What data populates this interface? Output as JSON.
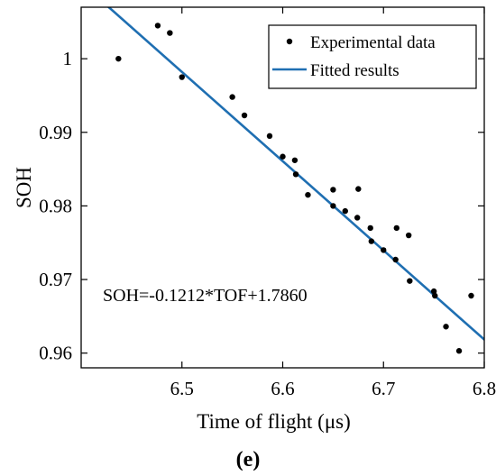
{
  "chart_data": {
    "type": "scatter",
    "xlabel": "Time of flight (μs)",
    "ylabel": "SOH",
    "xlim": [
      6.4,
      6.8
    ],
    "ylim": [
      0.958,
      1.007
    ],
    "xticks": [
      "6.5",
      "6.6",
      "6.7",
      "6.8"
    ],
    "yticks": [
      "0.96",
      "0.97",
      "0.98",
      "0.99",
      "1"
    ],
    "legend_position": "top-right",
    "grid": false,
    "series": [
      {
        "name": "Experimental data",
        "kind": "markers",
        "color": "#000000",
        "points": [
          [
            6.437,
            1.0
          ],
          [
            6.476,
            1.0045
          ],
          [
            6.488,
            1.0035
          ],
          [
            6.5,
            0.9975
          ],
          [
            6.55,
            0.9948
          ],
          [
            6.562,
            0.9923
          ],
          [
            6.587,
            0.9895
          ],
          [
            6.6,
            0.9867
          ],
          [
            6.612,
            0.9862
          ],
          [
            6.613,
            0.9843
          ],
          [
            6.625,
            0.9815
          ],
          [
            6.65,
            0.9822
          ],
          [
            6.65,
            0.98
          ],
          [
            6.662,
            0.9793
          ],
          [
            6.674,
            0.9784
          ],
          [
            6.675,
            0.9823
          ],
          [
            6.687,
            0.977
          ],
          [
            6.688,
            0.9752
          ],
          [
            6.7,
            0.974
          ],
          [
            6.712,
            0.9727
          ],
          [
            6.713,
            0.977
          ],
          [
            6.725,
            0.976
          ],
          [
            6.726,
            0.9698
          ],
          [
            6.75,
            0.9684
          ],
          [
            6.751,
            0.9678
          ],
          [
            6.762,
            0.9636
          ],
          [
            6.775,
            0.9603
          ],
          [
            6.787,
            0.9678
          ]
        ]
      },
      {
        "name": "Fitted results",
        "kind": "line",
        "color": "#1f6fb2",
        "slope": -0.1212,
        "intercept": 1.786
      }
    ],
    "annotation": "SOH=-0.1212*TOF+1.7860"
  },
  "caption": "(e)"
}
